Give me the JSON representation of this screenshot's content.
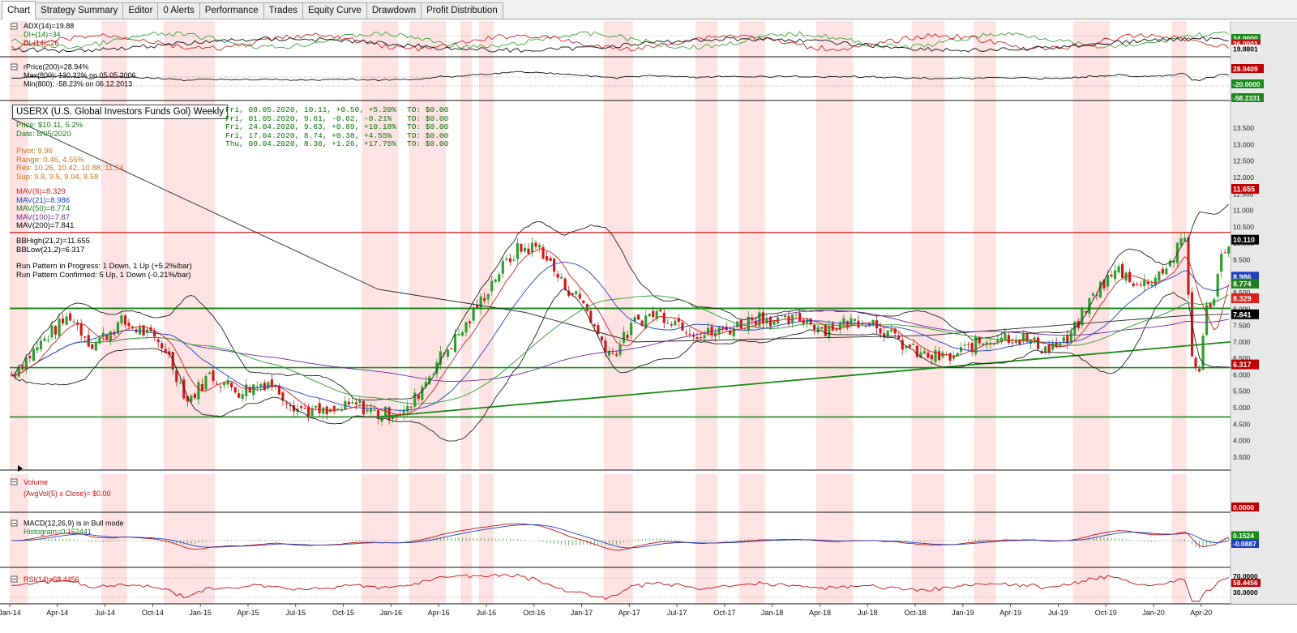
{
  "tabs": [
    {
      "label": "Chart",
      "active": true
    },
    {
      "label": "Strategy Summary"
    },
    {
      "label": "Editor"
    },
    {
      "label": "0 Alerts"
    },
    {
      "label": "Performance"
    },
    {
      "label": "Trades"
    },
    {
      "label": "Equity Curve"
    },
    {
      "label": "Drawdown"
    },
    {
      "label": "Profit Distribution"
    }
  ],
  "symbol_title": "USERX (U.S. Global Investors Funds Gol) Weekly",
  "price_info": {
    "price": "Price: $10.11, 5.2%",
    "date": "Date: 8/05/2020"
  },
  "pivot_info": [
    "Pivot: 9.96",
    "Range: 0.46, 4.55%",
    "Res: 10.26, 10.42, 10.88, 11.34",
    "Sup: 9.8, 9.5, 9.04, 8.58"
  ],
  "mav_info": [
    "MAV(8)=8.329",
    "MAV(21)=8.986",
    "MAV(50)=8.774",
    "MAV(100)=7.87",
    "MAV(200)=7.841"
  ],
  "bb_info": [
    "BBHigh(21,2)=11.655",
    "BBLow(21,2)=6.317"
  ],
  "run_info": [
    "Run Pattern in Progress: 1 Down, 1 Up (+5.2%/bar)",
    "Run Pattern Confirmed: 5 Up, 1 Down (-0.21%/bar)"
  ],
  "recent_bars": [
    {
      "text": "Fri, 08.05.2020, 10.11, +0.50, +5.20%",
      "to": "TO: $0.00"
    },
    {
      "text": "Fri, 01.05.2020, 9.61, -0.02, -0.21%",
      "to": "TO: $0.00"
    },
    {
      "text": "Fri, 24.04.2020, 9.63, +0.89, +10.18%",
      "to": "TO: $0.00"
    },
    {
      "text": "Fri, 17.04.2020, 8.74, +0.38, +4.55%",
      "to": "TO: $0.00"
    },
    {
      "text": "Thu, 09.04.2020, 8.36, +1.26, +17.75%",
      "to": "TO: $0.00"
    }
  ],
  "adx_labels": [
    "ADX(14)=19.88",
    "DI+(14)=34",
    "DI-(14)=26"
  ],
  "adx_axis": [
    "34.0000",
    "26.0001",
    "19.8801"
  ],
  "rprice_labels": [
    "rPrice(200)=28.94%",
    "Max(800): 130.32% on 05.05.2006",
    "Min(800): -58.23% on 06.12.2013"
  ],
  "rprice_axis": [
    "28.9409",
    "-20.0000",
    "-58.2331"
  ],
  "volume_labels": [
    "Volume",
    "(AvgVol(5) x Close)= $0.00"
  ],
  "volume_axis": "0.0000",
  "macd_labels": [
    "MACD(12,26,9) is in Bull mode",
    "Histogram=0.152441"
  ],
  "macd_axis": [
    "0.1524",
    "-0.0887"
  ],
  "rsi_labels": [
    "RSI(14)=58.4456"
  ],
  "rsi_axis": [
    "70.0000",
    "58.4456",
    "30.0000"
  ],
  "price_axis_ticks": [
    "13.500",
    "13.000",
    "12.500",
    "12.000",
    "11.500",
    "11.000",
    "10.500",
    "10.000",
    "9.500",
    "9.000",
    "8.500",
    "8.000",
    "7.500",
    "7.000",
    "6.500",
    "6.000",
    "5.500",
    "5.000",
    "4.500",
    "4.000",
    "3.500"
  ],
  "price_axis_badges": [
    {
      "value": "11.655",
      "color": "#c00000"
    },
    {
      "value": "10.110",
      "color": "#000000"
    },
    {
      "value": "8.986",
      "color": "#1f3fbf"
    },
    {
      "value": "8.774",
      "color": "#1f7f1f"
    },
    {
      "value": "8.329",
      "color": "#e02020"
    },
    {
      "value": "7.841",
      "color": "#000000"
    },
    {
      "value": "6.317",
      "color": "#c00000"
    }
  ],
  "x_axis_labels": [
    "Jan-14",
    "Apr-14",
    "Jul-14",
    "Oct-14",
    "Jan-15",
    "Apr-15",
    "Jul-15",
    "Oct-15",
    "Jan-16",
    "Apr-16",
    "Jul-16",
    "Oct-16",
    "Jan-17",
    "Apr-17",
    "Jul-17",
    "Oct-17",
    "Jan-18",
    "Apr-18",
    "Jul-18",
    "Oct-18",
    "Jan-19",
    "Apr-19",
    "Jul-19",
    "Oct-19",
    "Jan-20",
    "Apr-20"
  ],
  "colors": {
    "up": "#2e9e2e",
    "down": "#d01818",
    "shade": "#fde3e3",
    "trend": "#1a8a1a",
    "bb": "#222222",
    "mav8": "#d02020",
    "mav21": "#1f3fbf",
    "mav50": "#2a9a2a",
    "mav200": "#222222",
    "mav100": "#6a2a9a"
  }
}
